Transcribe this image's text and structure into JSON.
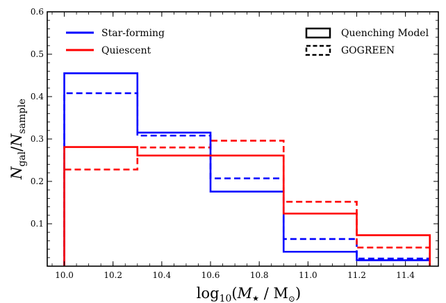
{
  "chart_data": {
    "type": "histogram-step",
    "xlabel": {
      "main": "log",
      "sub": "10",
      "open": "(",
      "var": "M",
      "sub2": "★",
      "rest": " / M",
      "sub3": "⊙",
      "close": ")"
    },
    "ylabel": {
      "main": "N",
      "sub": "gal",
      "mid": "/",
      "main2": "N",
      "sub2": "sample"
    },
    "xlim": [
      9.93,
      11.535
    ],
    "ylim": [
      0.0,
      0.6
    ],
    "xticks": [
      10.0,
      10.2,
      10.4,
      10.6,
      10.8,
      11.0,
      11.2,
      11.4
    ],
    "xtick_labels": [
      "10.0",
      "10.2",
      "10.4",
      "10.6",
      "10.8",
      "11.0",
      "11.2",
      "11.4"
    ],
    "yticks": [
      0.1,
      0.2,
      0.3,
      0.4,
      0.5,
      0.6
    ],
    "ytick_labels": [
      "0.1",
      "0.2",
      "0.3",
      "0.4",
      "0.5",
      "0.6"
    ],
    "bin_edges": [
      10.0,
      10.3,
      10.6,
      10.9,
      11.2,
      11.5
    ],
    "series": [
      {
        "name": "Star-forming",
        "model": "Quenching Model",
        "color": "#0000ff",
        "dashed": false,
        "values": [
          0.455,
          0.315,
          0.176,
          0.034,
          0.014
        ]
      },
      {
        "name": "Quiescent",
        "model": "Quenching Model",
        "color": "#ff0000",
        "dashed": false,
        "values": [
          0.281,
          0.261,
          0.261,
          0.124,
          0.073
        ]
      },
      {
        "name": "Star-forming",
        "model": "GOGREEN",
        "color": "#0000ff",
        "dashed": true,
        "values": [
          0.408,
          0.308,
          0.207,
          0.064,
          0.018
        ]
      },
      {
        "name": "Quiescent",
        "model": "GOGREEN",
        "color": "#ff0000",
        "dashed": true,
        "values": [
          0.228,
          0.28,
          0.296,
          0.152,
          0.044
        ]
      }
    ],
    "legend_left": {
      "position": "upper-left",
      "entries": [
        {
          "label": "Star-forming",
          "color": "#0000ff"
        },
        {
          "label": "Quiescent",
          "color": "#ff0000"
        }
      ]
    },
    "legend_right": {
      "position": "upper-right",
      "entries": [
        {
          "label": "Quenching Model",
          "color": "#000000",
          "style": "solid"
        },
        {
          "label": "GOGREEN",
          "color": "#000000",
          "style": "dashed"
        }
      ]
    },
    "grid": false
  }
}
